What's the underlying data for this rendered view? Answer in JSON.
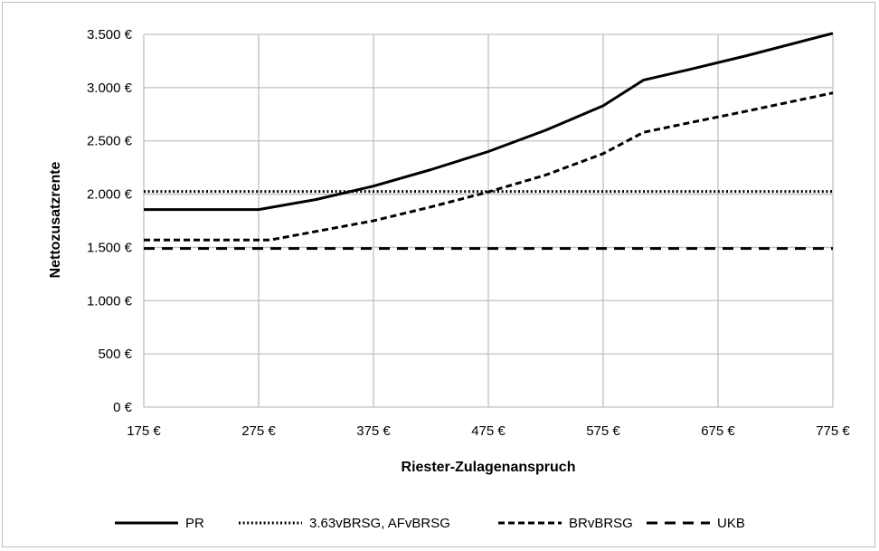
{
  "chart_data": {
    "type": "line",
    "title": "",
    "xlabel": "Riester-Zulagenanspruch",
    "ylabel": "Nettozusatzrente",
    "xlim": [
      175,
      775
    ],
    "ylim": [
      0,
      3500
    ],
    "x_ticks": [
      175,
      275,
      375,
      475,
      575,
      675,
      775
    ],
    "x_tick_labels": [
      "175 €",
      "275 €",
      "375 €",
      "475 €",
      "575 €",
      "675 €",
      "775 €"
    ],
    "y_ticks": [
      0,
      500,
      1000,
      1500,
      2000,
      2500,
      3000,
      3500
    ],
    "y_tick_labels": [
      "0 €",
      "500 €",
      "1.000 €",
      "1.500 €",
      "2.000 €",
      "2.500 €",
      "3.000 €",
      "3.500 €"
    ],
    "grid": true,
    "legend_position": "bottom",
    "series": [
      {
        "name": "PR",
        "style": "solid",
        "color": "#000000",
        "points": [
          [
            175,
            1855
          ],
          [
            275,
            1855
          ],
          [
            325,
            1950
          ],
          [
            375,
            2075
          ],
          [
            425,
            2230
          ],
          [
            475,
            2400
          ],
          [
            525,
            2600
          ],
          [
            575,
            2830
          ],
          [
            610,
            3070
          ],
          [
            650,
            3170
          ],
          [
            700,
            3300
          ],
          [
            775,
            3510
          ]
        ]
      },
      {
        "name": "3.63vBRSG, AFvBRSG",
        "style": "dotted",
        "color": "#000000",
        "points": [
          [
            175,
            2025
          ],
          [
            775,
            2025
          ]
        ]
      },
      {
        "name": "BRvBRSG",
        "style": "dashed",
        "color": "#000000",
        "points": [
          [
            175,
            1570
          ],
          [
            285,
            1570
          ],
          [
            375,
            1750
          ],
          [
            425,
            1880
          ],
          [
            475,
            2020
          ],
          [
            525,
            2180
          ],
          [
            575,
            2380
          ],
          [
            610,
            2580
          ],
          [
            650,
            2670
          ],
          [
            700,
            2780
          ],
          [
            775,
            2950
          ]
        ]
      },
      {
        "name": "UKB",
        "style": "longdash",
        "color": "#000000",
        "points": [
          [
            175,
            1490
          ],
          [
            775,
            1490
          ]
        ]
      }
    ]
  }
}
